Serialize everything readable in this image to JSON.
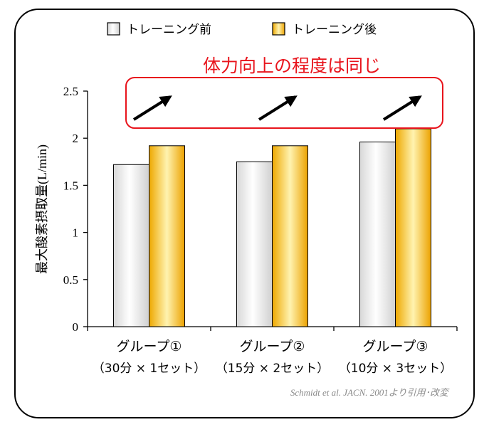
{
  "chart_data": {
    "type": "bar",
    "categories": [
      "グループ①",
      "グループ②",
      "グループ③"
    ],
    "category_sublabels": [
      "（30分 × 1セット）",
      "（15分 × 2セット）",
      "（10分 × 3セット）"
    ],
    "series": [
      {
        "name": "トレーニング前",
        "values": [
          1.72,
          1.75,
          1.96
        ]
      },
      {
        "name": "トレーニング後",
        "values": [
          1.92,
          1.92,
          2.1
        ]
      }
    ],
    "ylabel": "最大酸素摂取量(L/min)",
    "ylim": [
      0,
      2.5
    ],
    "yticks": [
      "0",
      "0.5",
      "1",
      "1.5",
      "2",
      "2.5"
    ],
    "ytick_values": [
      0,
      0.5,
      1,
      1.5,
      2,
      2.5
    ],
    "annotation": "体力向上の程度は同じ",
    "source": "Schmidt et al. JACN. 2001より引用･改変",
    "grid": false,
    "legend_position": "top"
  },
  "colors": {
    "before_fill": "#eeeeee",
    "after_fill": "#f5b800",
    "annotation": "#e8141c",
    "source_text": "#8a8a8a"
  }
}
